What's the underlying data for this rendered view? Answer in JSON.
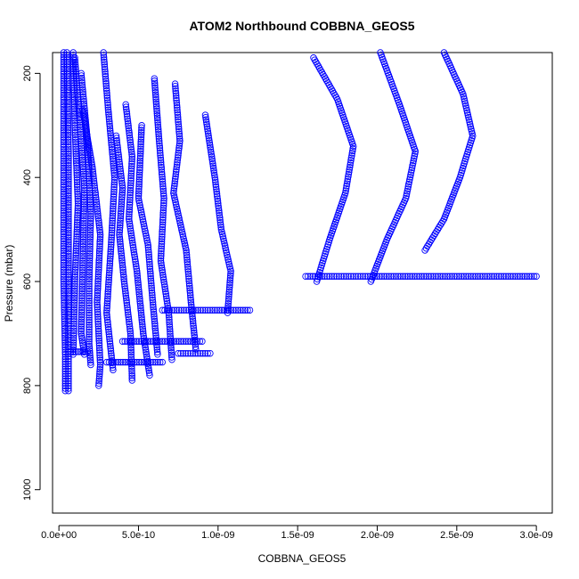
{
  "chart_data": {
    "type": "scatter",
    "title": "ATOM2 Northbound COBBNA_GEOS5",
    "xlabel": "COBBNA_GEOS5",
    "ylabel": "Pressure (mbar)",
    "xlim": [
      -4e-11,
      3.1e-09
    ],
    "ylim": [
      1045,
      160
    ],
    "y_reversed": true,
    "grid": false,
    "marker": "open-circle",
    "color": "#0000ff",
    "x_ticks": [
      {
        "value": 0,
        "label": "0.0e+00"
      },
      {
        "value": 5e-10,
        "label": "5.0e-10"
      },
      {
        "value": 1e-09,
        "label": "1.0e-09"
      },
      {
        "value": 1.5e-09,
        "label": "1.5e-09"
      },
      {
        "value": 2e-09,
        "label": "2.0e-09"
      },
      {
        "value": 2.5e-09,
        "label": "2.5e-09"
      },
      {
        "value": 3e-09,
        "label": "3.0e-09"
      }
    ],
    "y_ticks": [
      {
        "value": 200,
        "label": "200"
      },
      {
        "value": 400,
        "label": "400"
      },
      {
        "value": 600,
        "label": "600"
      },
      {
        "value": 800,
        "label": "800"
      },
      {
        "value": 1000,
        "label": "1000"
      }
    ],
    "series": [
      {
        "values": [
          [
            3e-11,
            160
          ],
          [
            3e-11,
            400
          ],
          [
            3e-11,
            600
          ],
          [
            4e-11,
            740
          ],
          [
            4e-11,
            810
          ]
        ]
      },
      {
        "values": [
          [
            5e-11,
            160
          ],
          [
            6e-11,
            350
          ],
          [
            6e-11,
            560
          ],
          [
            6e-11,
            730
          ],
          [
            6e-11,
            810
          ]
        ]
      },
      {
        "values": [
          [
            9e-11,
            160
          ],
          [
            1e-10,
            300
          ],
          [
            1.2e-10,
            450
          ],
          [
            1e-10,
            600
          ],
          [
            9e-11,
            740
          ]
        ]
      },
      {
        "values": [
          [
            1e-10,
            170
          ],
          [
            1.3e-10,
            290
          ],
          [
            1.6e-10,
            420
          ],
          [
            1.5e-10,
            560
          ],
          [
            1.4e-10,
            700
          ],
          [
            1.6e-10,
            740
          ]
        ]
      },
      {
        "values": [
          [
            1.4e-10,
            200
          ],
          [
            1.8e-10,
            330
          ],
          [
            2e-10,
            470
          ],
          [
            1.9e-10,
            600
          ],
          [
            1.9e-10,
            720
          ],
          [
            2e-10,
            760
          ]
        ]
      },
      {
        "values": [
          [
            1.5e-10,
            270
          ],
          [
            2.1e-10,
            380
          ],
          [
            2.6e-10,
            510
          ],
          [
            2.4e-10,
            640
          ],
          [
            2.6e-10,
            760
          ],
          [
            2.5e-10,
            800
          ]
        ]
      },
      {
        "values": [
          [
            2.8e-10,
            160
          ],
          [
            3.1e-10,
            270
          ],
          [
            3.5e-10,
            400
          ],
          [
            3.3e-10,
            520
          ],
          [
            3e-10,
            660
          ],
          [
            3.4e-10,
            770
          ]
        ]
      },
      {
        "values": [
          [
            3.6e-10,
            320
          ],
          [
            4e-10,
            420
          ],
          [
            3.8e-10,
            510
          ],
          [
            4.1e-10,
            600
          ],
          [
            4.5e-10,
            700
          ],
          [
            4.6e-10,
            790
          ]
        ]
      },
      {
        "values": [
          [
            4.2e-10,
            260
          ],
          [
            4.6e-10,
            360
          ],
          [
            4.4e-10,
            480
          ],
          [
            4.9e-10,
            580
          ],
          [
            5.3e-10,
            700
          ],
          [
            5.7e-10,
            780
          ]
        ]
      },
      {
        "values": [
          [
            5.2e-10,
            300
          ],
          [
            5e-10,
            440
          ],
          [
            5.6e-10,
            530
          ],
          [
            5.9e-10,
            640
          ],
          [
            6.2e-10,
            740
          ]
        ]
      },
      {
        "values": [
          [
            6e-10,
            210
          ],
          [
            6.3e-10,
            330
          ],
          [
            6.6e-10,
            440
          ],
          [
            6.4e-10,
            560
          ],
          [
            6.9e-10,
            660
          ],
          [
            7.1e-10,
            750
          ]
        ]
      },
      {
        "values": [
          [
            7.3e-10,
            220
          ],
          [
            7.6e-10,
            330
          ],
          [
            7.2e-10,
            430
          ],
          [
            8e-10,
            540
          ],
          [
            8.3e-10,
            640
          ],
          [
            8.6e-10,
            730
          ]
        ]
      },
      {
        "values": [
          [
            9.2e-10,
            280
          ],
          [
            9.8e-10,
            400
          ],
          [
            1.02e-09,
            500
          ],
          [
            1.08e-09,
            580
          ],
          [
            1.06e-09,
            660
          ]
        ]
      },
      {
        "values": [
          [
            1.6e-09,
            170
          ],
          [
            1.75e-09,
            250
          ],
          [
            1.85e-09,
            340
          ],
          [
            1.8e-09,
            430
          ],
          [
            1.7e-09,
            520
          ],
          [
            1.62e-09,
            600
          ]
        ]
      },
      {
        "values": [
          [
            2.02e-09,
            160
          ],
          [
            2.14e-09,
            260
          ],
          [
            2.24e-09,
            350
          ],
          [
            2.18e-09,
            440
          ],
          [
            2.06e-09,
            520
          ],
          [
            1.96e-09,
            600
          ]
        ]
      },
      {
        "values": [
          [
            2.42e-09,
            160
          ],
          [
            2.54e-09,
            240
          ],
          [
            2.6e-09,
            320
          ],
          [
            2.52e-09,
            400
          ],
          [
            2.42e-09,
            480
          ],
          [
            2.3e-09,
            540
          ]
        ]
      },
      {
        "values": [
          [
            1.55e-09,
            590
          ],
          [
            2e-09,
            590
          ],
          [
            2.5e-09,
            590
          ],
          [
            3e-09,
            590
          ]
        ]
      },
      {
        "values": [
          [
            4e-10,
            715
          ],
          [
            6.5e-10,
            715
          ],
          [
            9e-10,
            715
          ]
        ]
      },
      {
        "values": [
          [
            6.5e-10,
            655
          ],
          [
            9.5e-10,
            655
          ],
          [
            1.2e-09,
            655
          ]
        ]
      },
      {
        "values": [
          [
            6e-11,
            735
          ],
          [
            1.2e-10,
            735
          ],
          [
            1.8e-10,
            735
          ]
        ]
      },
      {
        "values": [
          [
            7.5e-10,
            738
          ],
          [
            9.5e-10,
            738
          ]
        ]
      },
      {
        "values": [
          [
            3e-10,
            755
          ],
          [
            6.5e-10,
            755
          ]
        ]
      }
    ]
  }
}
